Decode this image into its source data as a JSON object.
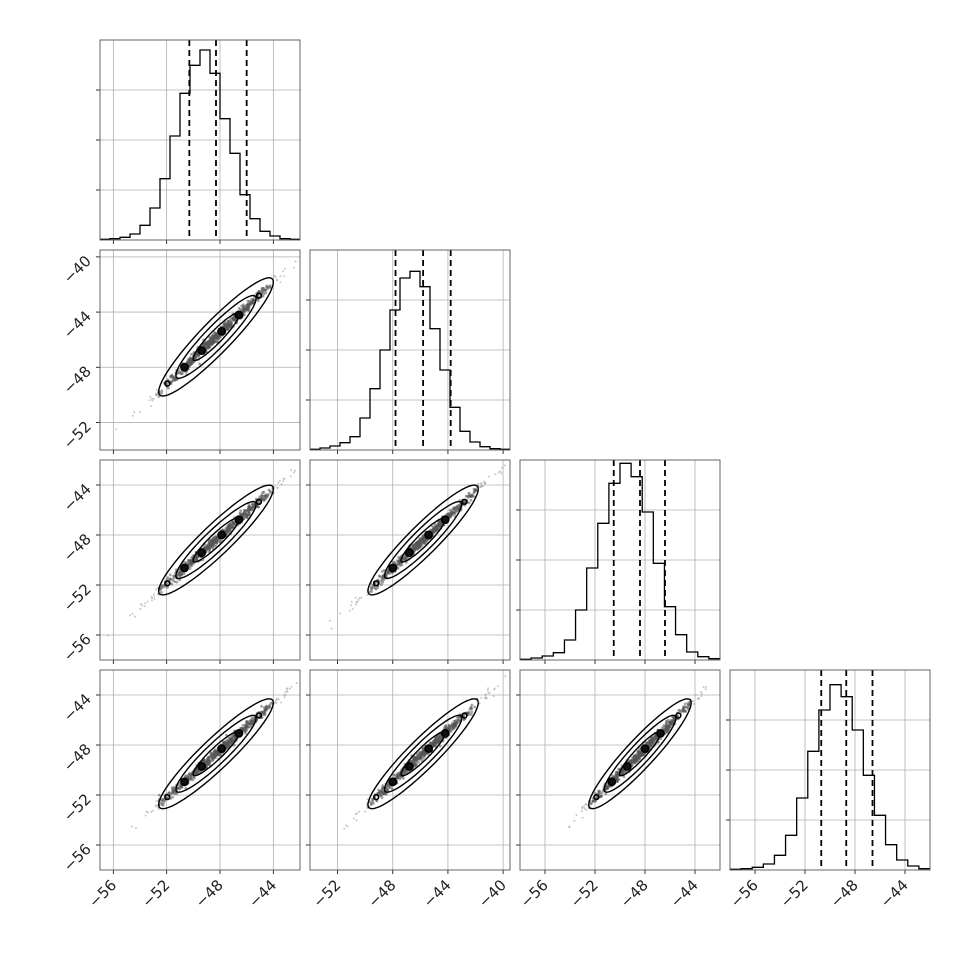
{
  "chart_data": {
    "type": "corner",
    "grid": true,
    "params": [
      {
        "range": [
          -57.0,
          -42.0
        ],
        "ticks": [
          -56,
          -52,
          -48,
          -44
        ],
        "tick_labels": [
          "−56",
          "−52",
          "−48",
          "−44"
        ],
        "quantiles": [
          -50.3,
          -48.3,
          -46.0
        ],
        "hist": [
          1,
          2,
          4,
          9,
          22,
          48,
          92,
          156,
          220,
          262,
          285,
          250,
          182,
          130,
          68,
          32,
          13,
          6,
          2,
          1
        ]
      },
      {
        "range": [
          -54.0,
          -39.5
        ],
        "ticks": [
          -52,
          -48,
          -44,
          -40
        ],
        "tick_labels": [
          "−52",
          "−48",
          "−44",
          "−40"
        ],
        "quantiles": [
          -47.8,
          -45.8,
          -43.8
        ],
        "hist": [
          1,
          3,
          6,
          11,
          20,
          48,
          92,
          150,
          210,
          258,
          268,
          245,
          182,
          120,
          64,
          28,
          12,
          5,
          2,
          1
        ]
      },
      {
        "range": [
          -58.0,
          -42.0
        ],
        "ticks": [
          -56,
          -52,
          -48,
          -44
        ],
        "tick_labels": [
          "−56",
          "−52",
          "−48",
          "−44"
        ],
        "quantiles": [
          -50.5,
          -48.4,
          -46.4
        ],
        "hist": [
          1,
          3,
          6,
          11,
          30,
          75,
          138,
          205,
          265,
          295,
          275,
          222,
          145,
          80,
          38,
          12,
          5,
          2
        ]
      },
      {
        "range": [
          -58.0,
          -42.0
        ],
        "ticks": [
          -56,
          -52,
          -48,
          -44
        ],
        "tick_labels": [
          "−56",
          "−52",
          "−48",
          "−44"
        ],
        "quantiles": [
          -50.7,
          -48.7,
          -46.6
        ],
        "hist": [
          1,
          2,
          4,
          9,
          22,
          52,
          108,
          178,
          240,
          278,
          260,
          210,
          142,
          82,
          38,
          15,
          6,
          2
        ]
      }
    ],
    "corr": [
      [
        1,
        0.995,
        0.995,
        0.995
      ],
      [
        0.995,
        1,
        0.995,
        0.995
      ],
      [
        0.995,
        0.995,
        1,
        0.995
      ],
      [
        0.995,
        0.995,
        0.995,
        1
      ]
    ],
    "hist_ylim": 300
  }
}
